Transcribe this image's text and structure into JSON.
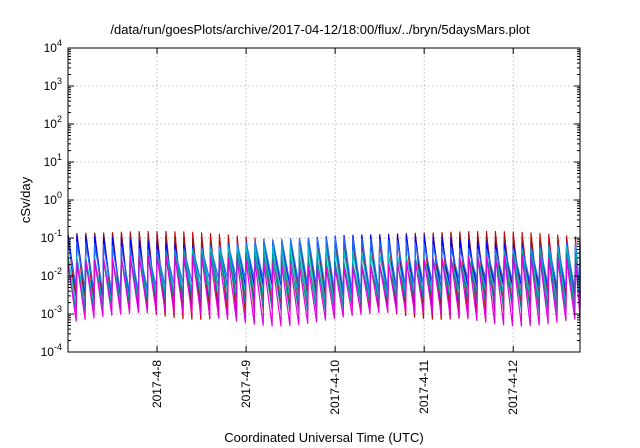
{
  "chart_data": {
    "type": "line",
    "title": "/data/run/goesPlots/archive/2017-04-12/18:00/flux/../bryn/5daysMars.plot",
    "xlabel": "Coordinated Universal Time (UTC)",
    "ylabel": "cSv/day",
    "y_scale": "log",
    "ylim": [
      0.0001,
      10000
    ],
    "xlim": [
      0,
      5.75
    ],
    "y_ticks": [
      {
        "base": "10",
        "exp": "-4"
      },
      {
        "base": "10",
        "exp": "-3"
      },
      {
        "base": "10",
        "exp": "-2"
      },
      {
        "base": "10",
        "exp": "-1"
      },
      {
        "base": "10",
        "exp": "0"
      },
      {
        "base": "10",
        "exp": "1"
      },
      {
        "base": "10",
        "exp": "2"
      },
      {
        "base": "10",
        "exp": "3"
      },
      {
        "base": "10",
        "exp": "4"
      }
    ],
    "x_ticks": [
      "2017-4-8",
      "2017-4-9",
      "2017-4-10",
      "2017-4-11",
      "2017-4-12"
    ],
    "grid": true,
    "legend": "none",
    "pattern": {
      "period_days": 0.1,
      "peak_values": [
        0.1,
        0.07,
        0.04,
        0.025,
        0.1
      ],
      "trough_values": [
        0.008,
        0.003,
        0.0015,
        0.0008,
        0.0012
      ]
    },
    "series": [
      {
        "color": "#d40000",
        "peak": 0.11,
        "trough": 0.0012
      },
      {
        "color": "#8b1a1a",
        "peak": 0.1,
        "trough": 0.002
      },
      {
        "color": "#0000ff",
        "peak": 0.09,
        "trough": 0.004
      },
      {
        "color": "#2070ff",
        "peak": 0.075,
        "trough": 0.006
      },
      {
        "color": "#00c0c0",
        "peak": 0.045,
        "trough": 0.003
      },
      {
        "color": "#009090",
        "peak": 0.03,
        "trough": 0.0018
      },
      {
        "color": "#e000e0",
        "peak": 0.025,
        "trough": 0.0008
      }
    ]
  }
}
